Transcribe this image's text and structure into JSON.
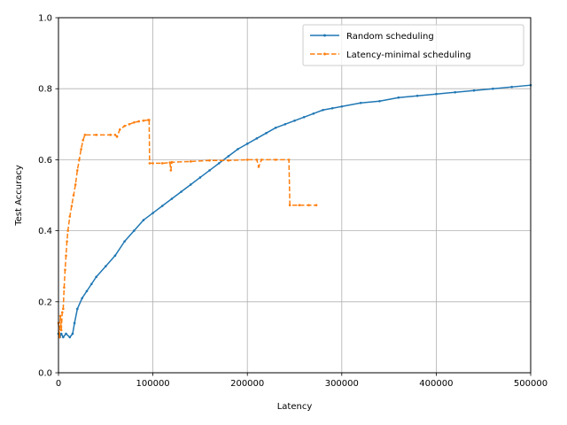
{
  "chart_data": {
    "type": "line",
    "xlabel": "Latency",
    "ylabel": "Test Accuracy",
    "xlim": [
      0,
      500000
    ],
    "ylim": [
      0.0,
      1.0
    ],
    "grid": true,
    "legend_position": "top-right",
    "x_ticks": [
      "0",
      "100000",
      "200000",
      "300000",
      "400000",
      "500000"
    ],
    "y_ticks": [
      "0.0",
      "0.2",
      "0.4",
      "0.6",
      "0.8",
      "1.0"
    ],
    "series": [
      {
        "name": "Random scheduling",
        "color": "#1f77b4",
        "style": "solid",
        "marker": "dot",
        "points": [
          [
            0,
            0.11
          ],
          [
            1500,
            0.1
          ],
          [
            3000,
            0.11
          ],
          [
            5000,
            0.1
          ],
          [
            8000,
            0.11
          ],
          [
            12000,
            0.1
          ],
          [
            15000,
            0.11
          ],
          [
            17000,
            0.14
          ],
          [
            20000,
            0.18
          ],
          [
            25000,
            0.21
          ],
          [
            30000,
            0.23
          ],
          [
            35000,
            0.25
          ],
          [
            40000,
            0.27
          ],
          [
            50000,
            0.3
          ],
          [
            60000,
            0.33
          ],
          [
            70000,
            0.37
          ],
          [
            80000,
            0.4
          ],
          [
            90000,
            0.43
          ],
          [
            100000,
            0.45
          ],
          [
            110000,
            0.47
          ],
          [
            120000,
            0.49
          ],
          [
            130000,
            0.51
          ],
          [
            140000,
            0.53
          ],
          [
            150000,
            0.55
          ],
          [
            160000,
            0.57
          ],
          [
            170000,
            0.59
          ],
          [
            180000,
            0.61
          ],
          [
            190000,
            0.63
          ],
          [
            200000,
            0.645
          ],
          [
            210000,
            0.66
          ],
          [
            220000,
            0.675
          ],
          [
            230000,
            0.69
          ],
          [
            240000,
            0.7
          ],
          [
            250000,
            0.71
          ],
          [
            260000,
            0.72
          ],
          [
            270000,
            0.73
          ],
          [
            280000,
            0.74
          ],
          [
            290000,
            0.745
          ],
          [
            300000,
            0.75
          ],
          [
            320000,
            0.76
          ],
          [
            340000,
            0.765
          ],
          [
            360000,
            0.775
          ],
          [
            380000,
            0.78
          ],
          [
            400000,
            0.785
          ],
          [
            420000,
            0.79
          ],
          [
            440000,
            0.795
          ],
          [
            460000,
            0.8
          ],
          [
            480000,
            0.805
          ],
          [
            500000,
            0.81
          ]
        ]
      },
      {
        "name": "Latency-minimal scheduling",
        "color": "#ff7f0e",
        "style": "dashed",
        "marker": "dot",
        "points": [
          [
            0,
            0.14
          ],
          [
            1000,
            0.1
          ],
          [
            2000,
            0.16
          ],
          [
            3000,
            0.12
          ],
          [
            4000,
            0.17
          ],
          [
            5000,
            0.18
          ],
          [
            6000,
            0.24
          ],
          [
            7000,
            0.29
          ],
          [
            8000,
            0.33
          ],
          [
            9000,
            0.37
          ],
          [
            10000,
            0.4
          ],
          [
            12000,
            0.44
          ],
          [
            14000,
            0.47
          ],
          [
            16000,
            0.5
          ],
          [
            18000,
            0.53
          ],
          [
            20000,
            0.57
          ],
          [
            22000,
            0.6
          ],
          [
            24000,
            0.63
          ],
          [
            26000,
            0.655
          ],
          [
            28000,
            0.67
          ],
          [
            40000,
            0.67
          ],
          [
            55000,
            0.67
          ],
          [
            60000,
            0.67
          ],
          [
            62000,
            0.665
          ],
          [
            65000,
            0.685
          ],
          [
            70000,
            0.695
          ],
          [
            75000,
            0.7
          ],
          [
            80000,
            0.705
          ],
          [
            85000,
            0.708
          ],
          [
            90000,
            0.71
          ],
          [
            95000,
            0.712
          ],
          [
            96000,
            0.712
          ],
          [
            96500,
            0.59
          ],
          [
            100000,
            0.59
          ],
          [
            110000,
            0.59
          ],
          [
            118000,
            0.592
          ],
          [
            119000,
            0.57
          ],
          [
            120000,
            0.593
          ],
          [
            140000,
            0.595
          ],
          [
            160000,
            0.598
          ],
          [
            180000,
            0.598
          ],
          [
            200000,
            0.6
          ],
          [
            210000,
            0.6
          ],
          [
            212000,
            0.58
          ],
          [
            215000,
            0.6
          ],
          [
            230000,
            0.6
          ],
          [
            244000,
            0.6
          ],
          [
            245000,
            0.472
          ],
          [
            255000,
            0.472
          ],
          [
            265000,
            0.472
          ],
          [
            273000,
            0.472
          ]
        ]
      }
    ]
  }
}
